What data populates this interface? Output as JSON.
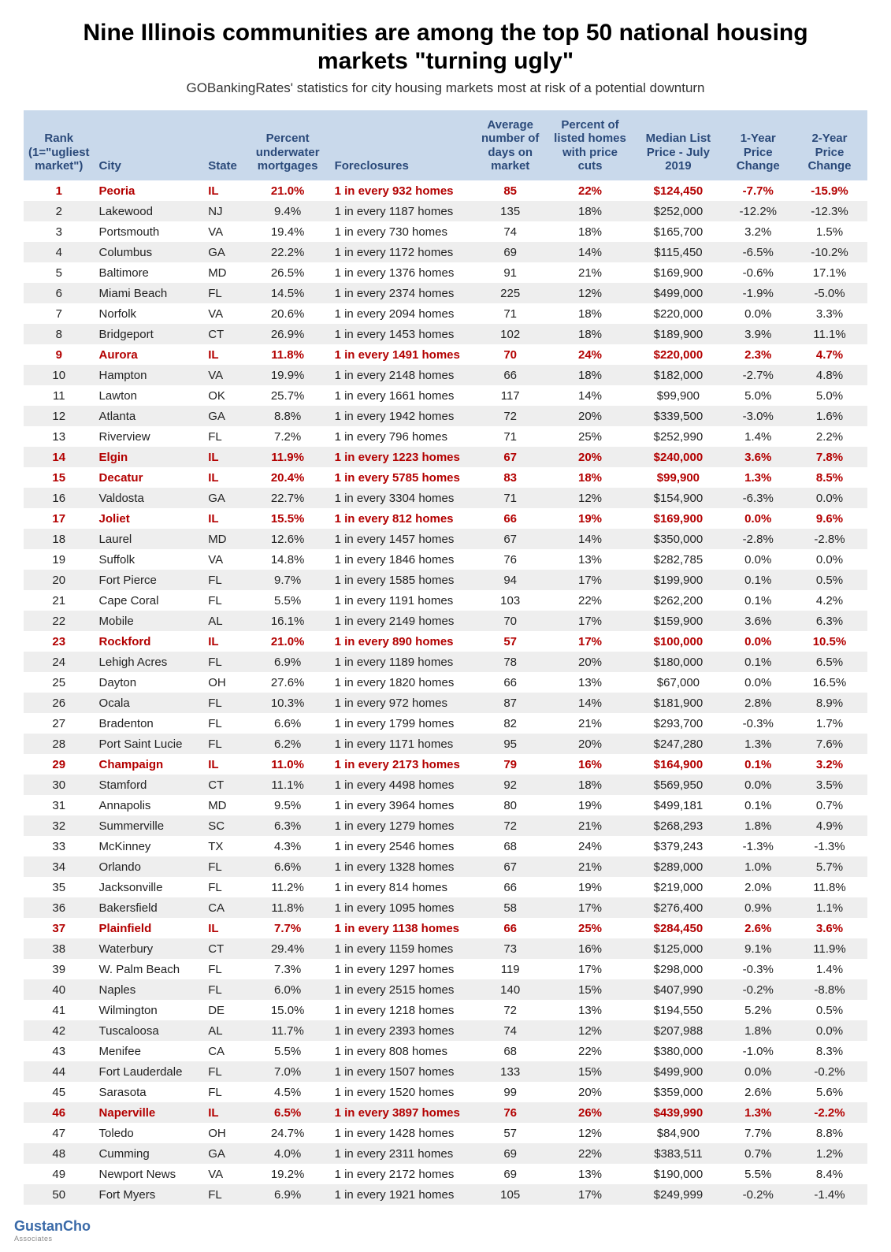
{
  "title": "Nine Illinois communities are among the top 50 national housing markets \"turning ugly\"",
  "subtitle": "GOBankingRates' statistics for city housing markets most at risk of a potential downturn",
  "logo_main": "GustanCho",
  "logo_sub": "Associates",
  "columns": [
    "Rank (1=\"ugliest market\")",
    "City",
    "State",
    "Percent underwater mortgages",
    "Foreclosures",
    "Average number of days on market",
    "Percent of listed homes with price cuts",
    "Median List Price - July 2019",
    "1-Year Price Change",
    "2-Year Price Change"
  ],
  "col_align": [
    "center",
    "left",
    "left",
    "center",
    "left",
    "center",
    "center",
    "center",
    "center",
    "center"
  ],
  "col_widths": [
    "8%",
    "13%",
    "5%",
    "10%",
    "17%",
    "9%",
    "10%",
    "11%",
    "8%",
    "9%"
  ],
  "highlight_state": "IL",
  "rows": [
    {
      "rank": 1,
      "city": "Peoria",
      "state": "IL",
      "uw": "21.0%",
      "fc": "1 in every 932 homes",
      "days": "85",
      "cuts": "22%",
      "price": "$124,450",
      "y1": "-7.7%",
      "y2": "-15.9%"
    },
    {
      "rank": 2,
      "city": "Lakewood",
      "state": "NJ",
      "uw": "9.4%",
      "fc": "1 in every 1187 homes",
      "days": "135",
      "cuts": "18%",
      "price": "$252,000",
      "y1": "-12.2%",
      "y2": "-12.3%"
    },
    {
      "rank": 3,
      "city": "Portsmouth",
      "state": "VA",
      "uw": "19.4%",
      "fc": "1 in every 730 homes",
      "days": "74",
      "cuts": "18%",
      "price": "$165,700",
      "y1": "3.2%",
      "y2": "1.5%"
    },
    {
      "rank": 4,
      "city": "Columbus",
      "state": "GA",
      "uw": "22.2%",
      "fc": "1 in every 1172 homes",
      "days": "69",
      "cuts": "14%",
      "price": "$115,450",
      "y1": "-6.5%",
      "y2": "-10.2%"
    },
    {
      "rank": 5,
      "city": "Baltimore",
      "state": "MD",
      "uw": "26.5%",
      "fc": "1 in every 1376 homes",
      "days": "91",
      "cuts": "21%",
      "price": "$169,900",
      "y1": "-0.6%",
      "y2": "17.1%"
    },
    {
      "rank": 6,
      "city": "Miami Beach",
      "state": "FL",
      "uw": "14.5%",
      "fc": "1 in every 2374 homes",
      "days": "225",
      "cuts": "12%",
      "price": "$499,000",
      "y1": "-1.9%",
      "y2": "-5.0%"
    },
    {
      "rank": 7,
      "city": "Norfolk",
      "state": "VA",
      "uw": "20.6%",
      "fc": "1 in every 2094 homes",
      "days": "71",
      "cuts": "18%",
      "price": "$220,000",
      "y1": "0.0%",
      "y2": "3.3%"
    },
    {
      "rank": 8,
      "city": "Bridgeport",
      "state": "CT",
      "uw": "26.9%",
      "fc": "1 in every 1453 homes",
      "days": "102",
      "cuts": "18%",
      "price": "$189,900",
      "y1": "3.9%",
      "y2": "11.1%"
    },
    {
      "rank": 9,
      "city": "Aurora",
      "state": "IL",
      "uw": "11.8%",
      "fc": "1 in every 1491 homes",
      "days": "70",
      "cuts": "24%",
      "price": "$220,000",
      "y1": "2.3%",
      "y2": "4.7%"
    },
    {
      "rank": 10,
      "city": "Hampton",
      "state": "VA",
      "uw": "19.9%",
      "fc": "1 in every 2148 homes",
      "days": "66",
      "cuts": "18%",
      "price": "$182,000",
      "y1": "-2.7%",
      "y2": "4.8%"
    },
    {
      "rank": 11,
      "city": "Lawton",
      "state": "OK",
      "uw": "25.7%",
      "fc": "1 in every 1661 homes",
      "days": "117",
      "cuts": "14%",
      "price": "$99,900",
      "y1": "5.0%",
      "y2": "5.0%"
    },
    {
      "rank": 12,
      "city": "Atlanta",
      "state": "GA",
      "uw": "8.8%",
      "fc": "1 in every 1942 homes",
      "days": "72",
      "cuts": "20%",
      "price": "$339,500",
      "y1": "-3.0%",
      "y2": "1.6%"
    },
    {
      "rank": 13,
      "city": "Riverview",
      "state": "FL",
      "uw": "7.2%",
      "fc": "1 in every 796 homes",
      "days": "71",
      "cuts": "25%",
      "price": "$252,990",
      "y1": "1.4%",
      "y2": "2.2%"
    },
    {
      "rank": 14,
      "city": "Elgin",
      "state": "IL",
      "uw": "11.9%",
      "fc": "1 in every 1223 homes",
      "days": "67",
      "cuts": "20%",
      "price": "$240,000",
      "y1": "3.6%",
      "y2": "7.8%"
    },
    {
      "rank": 15,
      "city": "Decatur",
      "state": "IL",
      "uw": "20.4%",
      "fc": "1 in every 5785 homes",
      "days": "83",
      "cuts": "18%",
      "price": "$99,900",
      "y1": "1.3%",
      "y2": "8.5%"
    },
    {
      "rank": 16,
      "city": "Valdosta",
      "state": "GA",
      "uw": "22.7%",
      "fc": "1 in every 3304 homes",
      "days": "71",
      "cuts": "12%",
      "price": "$154,900",
      "y1": "-6.3%",
      "y2": "0.0%"
    },
    {
      "rank": 17,
      "city": "Joliet",
      "state": "IL",
      "uw": "15.5%",
      "fc": "1 in every 812 homes",
      "days": "66",
      "cuts": "19%",
      "price": "$169,900",
      "y1": "0.0%",
      "y2": "9.6%"
    },
    {
      "rank": 18,
      "city": "Laurel",
      "state": "MD",
      "uw": "12.6%",
      "fc": "1 in every 1457 homes",
      "days": "67",
      "cuts": "14%",
      "price": "$350,000",
      "y1": "-2.8%",
      "y2": "-2.8%"
    },
    {
      "rank": 19,
      "city": "Suffolk",
      "state": "VA",
      "uw": "14.8%",
      "fc": "1 in every 1846 homes",
      "days": "76",
      "cuts": "13%",
      "price": "$282,785",
      "y1": "0.0%",
      "y2": "0.0%"
    },
    {
      "rank": 20,
      "city": "Fort Pierce",
      "state": "FL",
      "uw": "9.7%",
      "fc": "1 in every 1585 homes",
      "days": "94",
      "cuts": "17%",
      "price": "$199,900",
      "y1": "0.1%",
      "y2": "0.5%"
    },
    {
      "rank": 21,
      "city": "Cape Coral",
      "state": "FL",
      "uw": "5.5%",
      "fc": "1 in every 1191 homes",
      "days": "103",
      "cuts": "22%",
      "price": "$262,200",
      "y1": "0.1%",
      "y2": "4.2%"
    },
    {
      "rank": 22,
      "city": "Mobile",
      "state": "AL",
      "uw": "16.1%",
      "fc": "1 in every 2149 homes",
      "days": "70",
      "cuts": "17%",
      "price": "$159,900",
      "y1": "3.6%",
      "y2": "6.3%"
    },
    {
      "rank": 23,
      "city": "Rockford",
      "state": "IL",
      "uw": "21.0%",
      "fc": "1 in every 890 homes",
      "days": "57",
      "cuts": "17%",
      "price": "$100,000",
      "y1": "0.0%",
      "y2": "10.5%"
    },
    {
      "rank": 24,
      "city": "Lehigh Acres",
      "state": "FL",
      "uw": "6.9%",
      "fc": "1 in every 1189 homes",
      "days": "78",
      "cuts": "20%",
      "price": "$180,000",
      "y1": "0.1%",
      "y2": "6.5%"
    },
    {
      "rank": 25,
      "city": "Dayton",
      "state": "OH",
      "uw": "27.6%",
      "fc": "1 in every 1820 homes",
      "days": "66",
      "cuts": "13%",
      "price": "$67,000",
      "y1": "0.0%",
      "y2": "16.5%"
    },
    {
      "rank": 26,
      "city": "Ocala",
      "state": "FL",
      "uw": "10.3%",
      "fc": "1 in every 972 homes",
      "days": "87",
      "cuts": "14%",
      "price": "$181,900",
      "y1": "2.8%",
      "y2": "8.9%"
    },
    {
      "rank": 27,
      "city": "Bradenton",
      "state": "FL",
      "uw": "6.6%",
      "fc": "1 in every 1799 homes",
      "days": "82",
      "cuts": "21%",
      "price": "$293,700",
      "y1": "-0.3%",
      "y2": "1.7%"
    },
    {
      "rank": 28,
      "city": "Port Saint Lucie",
      "state": "FL",
      "uw": "6.2%",
      "fc": "1 in every 1171 homes",
      "days": "95",
      "cuts": "20%",
      "price": "$247,280",
      "y1": "1.3%",
      "y2": "7.6%"
    },
    {
      "rank": 29,
      "city": "Champaign",
      "state": "IL",
      "uw": "11.0%",
      "fc": "1 in every 2173 homes",
      "days": "79",
      "cuts": "16%",
      "price": "$164,900",
      "y1": "0.1%",
      "y2": "3.2%"
    },
    {
      "rank": 30,
      "city": "Stamford",
      "state": "CT",
      "uw": "11.1%",
      "fc": "1 in every 4498 homes",
      "days": "92",
      "cuts": "18%",
      "price": "$569,950",
      "y1": "0.0%",
      "y2": "3.5%"
    },
    {
      "rank": 31,
      "city": "Annapolis",
      "state": "MD",
      "uw": "9.5%",
      "fc": "1 in every 3964 homes",
      "days": "80",
      "cuts": "19%",
      "price": "$499,181",
      "y1": "0.1%",
      "y2": "0.7%"
    },
    {
      "rank": 32,
      "city": "Summerville",
      "state": "SC",
      "uw": "6.3%",
      "fc": "1 in every 1279 homes",
      "days": "72",
      "cuts": "21%",
      "price": "$268,293",
      "y1": "1.8%",
      "y2": "4.9%"
    },
    {
      "rank": 33,
      "city": "McKinney",
      "state": "TX",
      "uw": "4.3%",
      "fc": "1 in every 2546 homes",
      "days": "68",
      "cuts": "24%",
      "price": "$379,243",
      "y1": "-1.3%",
      "y2": "-1.3%"
    },
    {
      "rank": 34,
      "city": "Orlando",
      "state": "FL",
      "uw": "6.6%",
      "fc": "1 in every 1328 homes",
      "days": "67",
      "cuts": "21%",
      "price": "$289,000",
      "y1": "1.0%",
      "y2": "5.7%"
    },
    {
      "rank": 35,
      "city": "Jacksonville",
      "state": "FL",
      "uw": "11.2%",
      "fc": "1 in every 814 homes",
      "days": "66",
      "cuts": "19%",
      "price": "$219,000",
      "y1": "2.0%",
      "y2": "11.8%"
    },
    {
      "rank": 36,
      "city": "Bakersfield",
      "state": "CA",
      "uw": "11.8%",
      "fc": "1 in every 1095 homes",
      "days": "58",
      "cuts": "17%",
      "price": "$276,400",
      "y1": "0.9%",
      "y2": "1.1%"
    },
    {
      "rank": 37,
      "city": "Plainfield",
      "state": "IL",
      "uw": "7.7%",
      "fc": "1 in every 1138 homes",
      "days": "66",
      "cuts": "25%",
      "price": "$284,450",
      "y1": "2.6%",
      "y2": "3.6%"
    },
    {
      "rank": 38,
      "city": "Waterbury",
      "state": "CT",
      "uw": "29.4%",
      "fc": "1 in every 1159 homes",
      "days": "73",
      "cuts": "16%",
      "price": "$125,000",
      "y1": "9.1%",
      "y2": "11.9%"
    },
    {
      "rank": 39,
      "city": "W. Palm Beach",
      "state": "FL",
      "uw": "7.3%",
      "fc": "1 in every 1297 homes",
      "days": "119",
      "cuts": "17%",
      "price": "$298,000",
      "y1": "-0.3%",
      "y2": "1.4%"
    },
    {
      "rank": 40,
      "city": "Naples",
      "state": "FL",
      "uw": "6.0%",
      "fc": "1 in every 2515 homes",
      "days": "140",
      "cuts": "15%",
      "price": "$407,990",
      "y1": "-0.2%",
      "y2": "-8.8%"
    },
    {
      "rank": 41,
      "city": "Wilmington",
      "state": "DE",
      "uw": "15.0%",
      "fc": "1 in every 1218 homes",
      "days": "72",
      "cuts": "13%",
      "price": "$194,550",
      "y1": "5.2%",
      "y2": "0.5%"
    },
    {
      "rank": 42,
      "city": "Tuscaloosa",
      "state": "AL",
      "uw": "11.7%",
      "fc": "1 in every 2393 homes",
      "days": "74",
      "cuts": "12%",
      "price": "$207,988",
      "y1": "1.8%",
      "y2": "0.0%"
    },
    {
      "rank": 43,
      "city": "Menifee",
      "state": "CA",
      "uw": "5.5%",
      "fc": "1 in every 808 homes",
      "days": "68",
      "cuts": "22%",
      "price": "$380,000",
      "y1": "-1.0%",
      "y2": "8.3%"
    },
    {
      "rank": 44,
      "city": "Fort Lauderdale",
      "state": "FL",
      "uw": "7.0%",
      "fc": "1 in every 1507 homes",
      "days": "133",
      "cuts": "15%",
      "price": "$499,900",
      "y1": "0.0%",
      "y2": "-0.2%"
    },
    {
      "rank": 45,
      "city": "Sarasota",
      "state": "FL",
      "uw": "4.5%",
      "fc": "1 in every 1520 homes",
      "days": "99",
      "cuts": "20%",
      "price": "$359,000",
      "y1": "2.6%",
      "y2": "5.6%"
    },
    {
      "rank": 46,
      "city": "Naperville",
      "state": "IL",
      "uw": "6.5%",
      "fc": "1 in every 3897 homes",
      "days": "76",
      "cuts": "26%",
      "price": "$439,990",
      "y1": "1.3%",
      "y2": "-2.2%"
    },
    {
      "rank": 47,
      "city": "Toledo",
      "state": "OH",
      "uw": "24.7%",
      "fc": "1 in every 1428 homes",
      "days": "57",
      "cuts": "12%",
      "price": "$84,900",
      "y1": "7.7%",
      "y2": "8.8%"
    },
    {
      "rank": 48,
      "city": "Cumming",
      "state": "GA",
      "uw": "4.0%",
      "fc": "1 in every 2311 homes",
      "days": "69",
      "cuts": "22%",
      "price": "$383,511",
      "y1": "0.7%",
      "y2": "1.2%"
    },
    {
      "rank": 49,
      "city": "Newport News",
      "state": "VA",
      "uw": "19.2%",
      "fc": "1 in every 2172 homes",
      "days": "69",
      "cuts": "13%",
      "price": "$190,000",
      "y1": "5.5%",
      "y2": "8.4%"
    },
    {
      "rank": 50,
      "city": "Fort Myers",
      "state": "FL",
      "uw": "6.9%",
      "fc": "1 in every 1921 homes",
      "days": "105",
      "cuts": "17%",
      "price": "$249,999",
      "y1": "-0.2%",
      "y2": "-1.4%"
    }
  ]
}
